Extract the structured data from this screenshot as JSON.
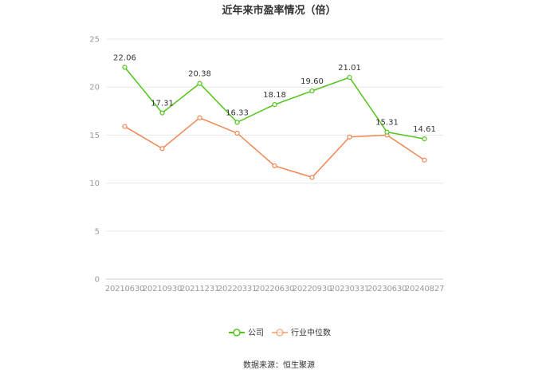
{
  "chart_data": {
    "type": "line",
    "title": "近年来市盈率情况（倍）",
    "categories": [
      "20210630",
      "20210930",
      "20211231",
      "20220331",
      "20220630",
      "20220930",
      "20230331",
      "20230630",
      "20240827"
    ],
    "ylim": [
      0,
      25
    ],
    "yticks": [
      0,
      5,
      10,
      15,
      20,
      25
    ],
    "grid": true,
    "legend_position": "bottom",
    "series": [
      {
        "name": "公司",
        "color": "#52c41a",
        "values": [
          22.06,
          17.31,
          20.38,
          16.33,
          18.18,
          19.6,
          21.01,
          15.31,
          14.61
        ],
        "labels": [
          "22.06",
          "17.31",
          "20.38",
          "16.33",
          "18.18",
          "19.60",
          "21.01",
          "15.31",
          "14.61"
        ]
      },
      {
        "name": "行业中位数",
        "color": "#f08650",
        "values": [
          15.9,
          13.6,
          16.8,
          15.2,
          11.8,
          10.6,
          14.8,
          15.0,
          12.4
        ]
      }
    ],
    "source": "数据来源：恒生聚源"
  }
}
